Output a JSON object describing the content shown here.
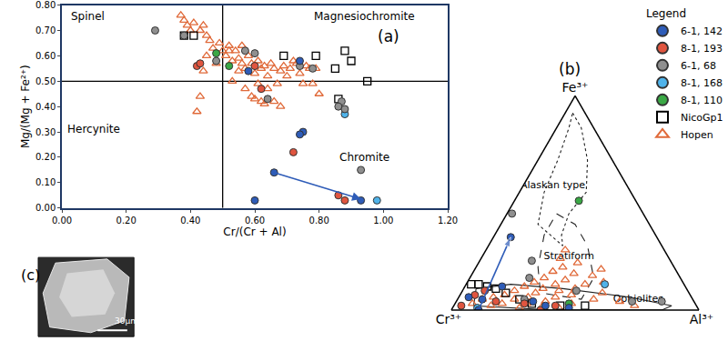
{
  "chart_data": [
    {
      "type": "scatter",
      "title": "(a)",
      "x_label": "Cr/(Cr + Al)",
      "y_label": "Mg/(Mg + Fe²⁺)",
      "xlim": [
        0,
        1.2
      ],
      "xticks": [
        {
          "value": 0,
          "label": "0.00"
        },
        {
          "value": 0.2,
          "label": "0.20"
        },
        {
          "value": 0.4,
          "label": "0.40"
        },
        {
          "value": 0.6,
          "label": "0.60"
        },
        {
          "value": 0.8,
          "label": "0.80"
        },
        {
          "value": 1.0,
          "label": "1.00"
        },
        {
          "value": 1.2,
          "label": "1.20"
        }
      ],
      "ylim": [
        0,
        0.8
      ],
      "yticks": [
        {
          "value": 0,
          "label": "0.00"
        },
        {
          "value": 0.1,
          "label": "0.10"
        },
        {
          "value": 0.2,
          "label": "0.20"
        },
        {
          "value": 0.3,
          "label": "0.30"
        },
        {
          "value": 0.4,
          "label": "0.40"
        },
        {
          "value": 0.5,
          "label": "0.50"
        },
        {
          "value": 0.6,
          "label": "0.60"
        },
        {
          "value": 0.7,
          "label": "0.70"
        },
        {
          "value": 0.8,
          "label": "0.80"
        }
      ],
      "grid": false,
      "reference_lines": {
        "x": 0.5,
        "y": 0.5
      },
      "annotations": [
        {
          "text": "Spinel",
          "x": 0.08,
          "y": 0.755
        },
        {
          "text": "Magnesiochromite",
          "x": 0.94,
          "y": 0.755
        },
        {
          "text": "Hercynite",
          "x": 0.1,
          "y": 0.31
        },
        {
          "text": "Chromite",
          "x": 0.94,
          "y": 0.2
        }
      ],
      "arrow": {
        "from": [
          0.66,
          0.14
        ],
        "to": [
          0.93,
          0.035
        ],
        "color": "#2e5cb8"
      },
      "series": [
        {
          "name": "6-1, 142",
          "color": "#2e5cb8",
          "marker": "circle",
          "x": [
            0.58,
            0.74,
            0.75,
            0.74,
            0.66,
            0.6,
            0.93
          ],
          "values": [
            0.54,
            0.58,
            0.3,
            0.29,
            0.14,
            0.03,
            0.03
          ]
        },
        {
          "name": "8-1, 193",
          "color": "#e0553f",
          "marker": "circle",
          "x": [
            0.42,
            0.43,
            0.6,
            0.62,
            0.72,
            0.86,
            0.88
          ],
          "values": [
            0.56,
            0.57,
            0.56,
            0.47,
            0.22,
            0.05,
            0.03
          ]
        },
        {
          "name": "6-1, 68",
          "color": "#8f8f8f",
          "marker": "circle",
          "x": [
            0.29,
            0.38,
            0.48,
            0.57,
            0.6,
            0.64,
            0.74,
            0.78,
            0.87,
            0.86,
            0.88,
            0.93
          ],
          "values": [
            0.7,
            0.68,
            0.58,
            0.62,
            0.61,
            0.43,
            0.56,
            0.55,
            0.42,
            0.4,
            0.39,
            0.15
          ]
        },
        {
          "name": "8-1, 168",
          "color": "#4fb3ea",
          "marker": "circle",
          "x": [
            0.88,
            0.98
          ],
          "values": [
            0.37,
            0.03
          ]
        },
        {
          "name": "8-1, 110",
          "color": "#3aa845",
          "marker": "circle",
          "x": [
            0.48,
            0.52
          ],
          "values": [
            0.61,
            0.56
          ]
        },
        {
          "name": "NicoGp1",
          "color": "#000000",
          "marker": "square-open",
          "x": [
            0.38,
            0.41,
            0.69,
            0.79,
            0.85,
            0.88,
            0.9,
            0.95,
            0.86
          ],
          "values": [
            0.68,
            0.68,
            0.6,
            0.6,
            0.55,
            0.62,
            0.58,
            0.5,
            0.43
          ]
        },
        {
          "name": "Hopen",
          "color": "#e06a3a",
          "marker": "triangle-up-open",
          "x": [
            0.37,
            0.38,
            0.39,
            0.41,
            0.4,
            0.43,
            0.44,
            0.45,
            0.46,
            0.42,
            0.43,
            0.45,
            0.47,
            0.49,
            0.5,
            0.51,
            0.52,
            0.53,
            0.54,
            0.55,
            0.56,
            0.56,
            0.57,
            0.58,
            0.59,
            0.6,
            0.61,
            0.62,
            0.63,
            0.64,
            0.65,
            0.66,
            0.67,
            0.68,
            0.69,
            0.7,
            0.71,
            0.72,
            0.73,
            0.74,
            0.75,
            0.76,
            0.77,
            0.78,
            0.79,
            0.8,
            0.6,
            0.62,
            0.63,
            0.66,
            0.68,
            0.57,
            0.61,
            0.64,
            0.59,
            0.52,
            0.48,
            0.44,
            0.53,
            0.55
          ],
          "values": [
            0.76,
            0.74,
            0.72,
            0.73,
            0.7,
            0.7,
            0.72,
            0.68,
            0.66,
            0.38,
            0.44,
            0.6,
            0.63,
            0.65,
            0.62,
            0.6,
            0.64,
            0.58,
            0.62,
            0.59,
            0.57,
            0.64,
            0.55,
            0.6,
            0.57,
            0.53,
            0.58,
            0.55,
            0.56,
            0.52,
            0.57,
            0.55,
            0.49,
            0.54,
            0.56,
            0.52,
            0.55,
            0.58,
            0.57,
            0.53,
            0.49,
            0.56,
            0.55,
            0.49,
            0.55,
            0.45,
            0.43,
            0.42,
            0.41,
            0.42,
            0.4,
            0.47,
            0.49,
            0.47,
            0.44,
            0.62,
            0.57,
            0.54,
            0.5,
            0.54
          ]
        }
      ]
    },
    {
      "type": "ternary",
      "title": "(b)",
      "a_label": "Fe³⁺",
      "b_label": "Cr³⁺",
      "c_label": "Al³⁺",
      "tick_labels": false,
      "grid": false,
      "legend": "top right",
      "legend_title": "Legend",
      "arrow": {
        "from": [
          0,
          0.89,
          0.11
        ],
        "to": [
          0.34,
          0.59,
          0.07
        ],
        "color": "#2e5cb8"
      },
      "fields": [
        {
          "name": "Alaskan type",
          "line_style": "dotted",
          "a": [
            0.92,
            0.85,
            0.7,
            0.55,
            0.45,
            0.35,
            0.3,
            0.4,
            0.55,
            0.7,
            0.85,
            0.92
          ],
          "b": [
            0.05,
            0.05,
            0.1,
            0.18,
            0.3,
            0.38,
            0.4,
            0.45,
            0.35,
            0.22,
            0.1,
            0.05
          ],
          "c": [
            0.03,
            0.1,
            0.2,
            0.27,
            0.25,
            0.27,
            0.3,
            0.15,
            0.1,
            0.08,
            0.05,
            0.03
          ],
          "label_position": [
            0.58,
            0.3,
            0.12
          ]
        },
        {
          "name": "Stratiform",
          "line_style": "dashed",
          "a": [
            0.45,
            0.4,
            0.3,
            0.15,
            0.05,
            0.08,
            0.2,
            0.35,
            0.45
          ],
          "b": [
            0.35,
            0.3,
            0.3,
            0.35,
            0.45,
            0.6,
            0.55,
            0.45,
            0.35
          ],
          "c": [
            0.2,
            0.3,
            0.4,
            0.5,
            0.5,
            0.32,
            0.25,
            0.2,
            0.2
          ],
          "label_position": [
            0.25,
            0.4,
            0.35
          ]
        },
        {
          "name": "Ophiolites",
          "line_style": "solid",
          "a": [
            0.1,
            0.12,
            0.1,
            0.06,
            0.02,
            0.0,
            0.0,
            0.02,
            0.1
          ],
          "b": [
            0.85,
            0.7,
            0.5,
            0.25,
            0.1,
            0.15,
            0.6,
            0.9,
            0.85
          ],
          "c": [
            0.05,
            0.18,
            0.4,
            0.69,
            0.88,
            0.85,
            0.4,
            0.08,
            0.05
          ],
          "label_position": [
            0.05,
            0.22,
            0.73
          ]
        }
      ],
      "series": [
        {
          "name": "6-1, 142",
          "color": "#2e5cb8",
          "marker": "circle",
          "a": [
            0.34,
            0.11,
            0.0,
            0.06,
            0.04,
            0.02,
            0.01,
            0.05
          ],
          "b": [
            0.59,
            0.74,
            0.89,
            0.9,
            0.65,
            0.61,
            0.52,
            0.85
          ],
          "c": [
            0.07,
            0.15,
            0.11,
            0.04,
            0.31,
            0.37,
            0.47,
            0.1
          ]
        },
        {
          "name": "8-1, 193",
          "color": "#e0553f",
          "marker": "circle",
          "a": [
            0.02,
            0.04,
            0.03,
            0.0,
            0.02,
            0.09,
            0.07
          ],
          "b": [
            0.95,
            0.8,
            0.69,
            0.64,
            0.57,
            0.82,
            0.87
          ],
          "c": [
            0.03,
            0.16,
            0.28,
            0.36,
            0.41,
            0.09,
            0.06
          ]
        },
        {
          "name": "6-1, 68",
          "color": "#8f8f8f",
          "marker": "circle",
          "a": [
            0.45,
            0.23,
            0.15,
            0.09,
            0.04,
            0.04,
            0.05
          ],
          "b": [
            0.53,
            0.56,
            0.61,
            0.45,
            0.25,
            0.13,
            0.68
          ],
          "c": [
            0.02,
            0.21,
            0.24,
            0.46,
            0.71,
            0.83,
            0.27
          ]
        },
        {
          "name": "8-1, 168",
          "color": "#4fb3ea",
          "marker": "circle",
          "a": [
            0.12,
            0.01
          ],
          "b": [
            0.32,
            0.89
          ],
          "c": [
            0.56,
            0.1
          ]
        },
        {
          "name": "8-1, 110",
          "color": "#3aa845",
          "marker": "circle",
          "a": [
            0.51,
            0.03
          ],
          "b": [
            0.23,
            0.51
          ],
          "c": [
            0.26,
            0.46
          ]
        },
        {
          "name": "NicoGp1",
          "color": "#000000",
          "marker": "square-open",
          "a": [
            0.12,
            0.12,
            0.11,
            0.1,
            0.08,
            0.05,
            0.03,
            0.02,
            0.02
          ],
          "b": [
            0.86,
            0.83,
            0.8,
            0.77,
            0.74,
            0.7,
            0.66,
            0.55,
            0.45
          ],
          "c": [
            0.02,
            0.05,
            0.09,
            0.13,
            0.18,
            0.25,
            0.31,
            0.43,
            0.53
          ]
        },
        {
          "name": "Hopen",
          "color": "#e06a3a",
          "marker": "triangle-up-open",
          "a": [
            0.28,
            0.24,
            0.22,
            0.2,
            0.18,
            0.17,
            0.15,
            0.14,
            0.13,
            0.12,
            0.12,
            0.11,
            0.1,
            0.1,
            0.09,
            0.09,
            0.08,
            0.08,
            0.07,
            0.07,
            0.06,
            0.06,
            0.06,
            0.05,
            0.05,
            0.05,
            0.04,
            0.04,
            0.03,
            0.03,
            0.03,
            0.03,
            0.02,
            0.02,
            0.02,
            0.01,
            0.01,
            0.16,
            0.19,
            0.13
          ],
          "b": [
            0.4,
            0.44,
            0.38,
            0.45,
            0.5,
            0.42,
            0.55,
            0.47,
            0.6,
            0.52,
            0.4,
            0.65,
            0.58,
            0.45,
            0.7,
            0.52,
            0.62,
            0.35,
            0.75,
            0.48,
            0.8,
            0.66,
            0.55,
            0.85,
            0.72,
            0.4,
            0.6,
            0.3,
            0.9,
            0.78,
            0.68,
            0.5,
            0.83,
            0.62,
            0.25,
            0.72,
            0.56,
            0.35,
            0.3,
            0.32
          ],
          "c": [
            0.32,
            0.32,
            0.4,
            0.35,
            0.32,
            0.41,
            0.3,
            0.39,
            0.27,
            0.36,
            0.48,
            0.24,
            0.32,
            0.45,
            0.21,
            0.39,
            0.3,
            0.57,
            0.18,
            0.45,
            0.14,
            0.28,
            0.39,
            0.1,
            0.23,
            0.55,
            0.36,
            0.66,
            0.07,
            0.19,
            0.29,
            0.47,
            0.15,
            0.36,
            0.73,
            0.27,
            0.43,
            0.49,
            0.51,
            0.55
          ]
        }
      ]
    },
    {
      "type": "image",
      "title": "(c)",
      "scale_bar": "30μm"
    }
  ]
}
